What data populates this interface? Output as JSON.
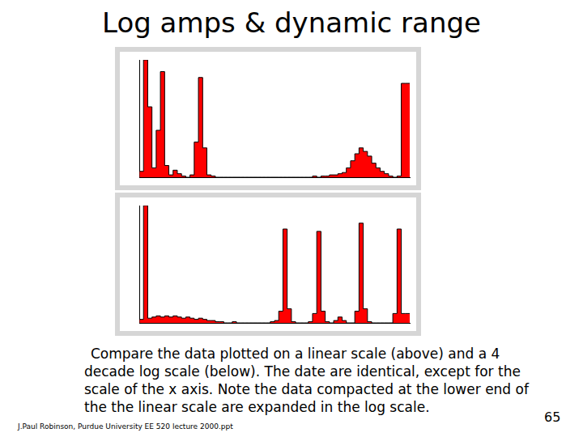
{
  "title": "Log amps & dynamic range",
  "chart_data": [
    {
      "type": "histogram",
      "bins": [
        0,
        16,
        32,
        48,
        64,
        80,
        96,
        112,
        128,
        144,
        160,
        176,
        192,
        208,
        224,
        240,
        256,
        272,
        288,
        304,
        320,
        336,
        352,
        368,
        384,
        400,
        416,
        432,
        448,
        464,
        480,
        496,
        512,
        528,
        544,
        560,
        576,
        592,
        608,
        624,
        640,
        656,
        672,
        688,
        704,
        720,
        736,
        752,
        768,
        784,
        800,
        816,
        832,
        848,
        864,
        880,
        896,
        912,
        928,
        944,
        960,
        976,
        992,
        1008,
        1024
      ],
      "values": [
        0,
        5,
        100,
        60,
        8,
        40,
        90,
        10,
        2,
        6,
        3,
        1,
        0,
        2,
        30,
        85,
        25,
        2,
        1,
        0,
        0,
        0,
        0,
        0,
        0,
        0,
        0,
        0,
        0,
        0,
        0,
        0,
        0,
        0,
        0,
        0,
        0,
        0,
        0,
        0,
        0,
        0,
        1,
        0,
        1,
        1,
        2,
        2,
        3,
        4,
        8,
        14,
        20,
        25,
        22,
        18,
        12,
        8,
        5,
        3,
        1,
        0,
        1,
        80
      ],
      "color": "#ff0000",
      "xlim": [
        0,
        1024
      ],
      "ylim": [
        0,
        100
      ],
      "grid": false,
      "tick_labels": false
    },
    {
      "type": "histogram",
      "bins": [
        0,
        16,
        32,
        48,
        64,
        80,
        96,
        112,
        128,
        144,
        160,
        176,
        192,
        208,
        224,
        240,
        256,
        272,
        288,
        304,
        320,
        336,
        352,
        368,
        384,
        400,
        416,
        432,
        448,
        464,
        480,
        496,
        512,
        528,
        544,
        560,
        576,
        592,
        608,
        624,
        640,
        656,
        672,
        688,
        704,
        720,
        736,
        752,
        768,
        784,
        800,
        816,
        832,
        848,
        864,
        880,
        896,
        912,
        928,
        944,
        960,
        976,
        992,
        1008,
        1024
      ],
      "values": [
        0,
        3,
        100,
        4,
        5,
        6,
        5,
        6,
        5,
        6,
        5,
        4,
        5,
        4,
        3,
        4,
        3,
        2,
        2,
        1,
        1,
        0,
        0,
        1,
        0,
        0,
        0,
        0,
        0,
        0,
        0,
        0,
        1,
        2,
        10,
        80,
        12,
        1,
        0,
        0,
        0,
        1,
        8,
        78,
        10,
        1,
        0,
        2,
        5,
        2,
        0,
        0,
        10,
        85,
        12,
        1,
        0,
        0,
        0,
        0,
        0,
        8,
        80,
        8
      ],
      "color": "#ff0000",
      "xlim": [
        0,
        1024
      ],
      "ylim": [
        0,
        100
      ],
      "grid": false,
      "tick_labels": false
    }
  ],
  "caption": "Compare the data plotted on a linear scale (above) and a 4 decade log scale (below). The date are identical, except for the scale of the x axis. Note the data compacted at the lower end of the the linear scale are expanded in the log scale.",
  "footer": "J.Paul Robinson, Purdue University EE 520 lecture 2000.ppt",
  "page_number": 65
}
